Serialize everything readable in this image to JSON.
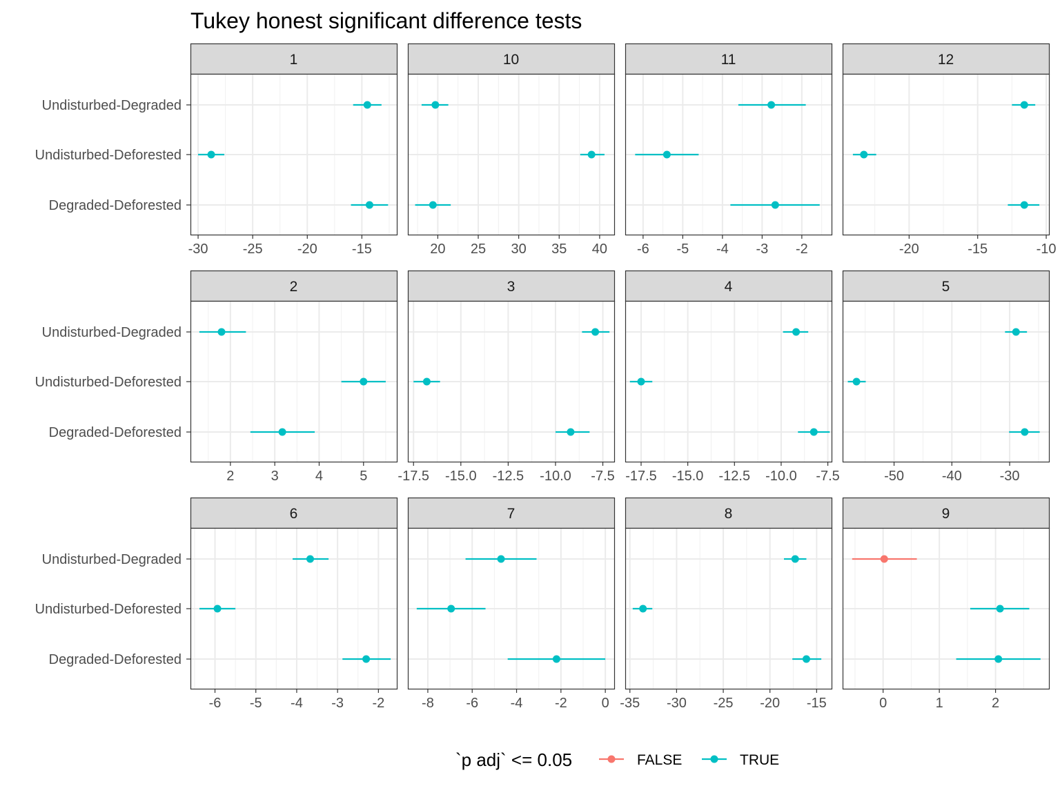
{
  "chart_data": {
    "type": "scatter",
    "title": "Tukey honest significant difference tests",
    "xlabel": "",
    "ylabel": "",
    "grid": true,
    "categories": [
      "Undisturbed-Degraded",
      "Undisturbed-Deforested",
      "Degraded-Deforested"
    ],
    "legend": {
      "title": "`p adj` <= 0.05",
      "position": "bottom",
      "entries": [
        {
          "label": "FALSE",
          "color": "#F8766D"
        },
        {
          "label": "TRUE",
          "color": "#00BFC4"
        }
      ]
    },
    "panels": [
      {
        "label": "1",
        "xlim": [
          -30.7,
          -11.8
        ],
        "ticks": [
          -30,
          -25,
          -20,
          -15
        ],
        "tick_labels": [
          "-30",
          "-25",
          "-20",
          "-15"
        ],
        "points": [
          {
            "category": "Undisturbed-Degraded",
            "estimate": -14.5,
            "lwr": -15.8,
            "upr": -13.2,
            "significant": true
          },
          {
            "category": "Undisturbed-Deforested",
            "estimate": -28.8,
            "lwr": -30.0,
            "upr": -27.6,
            "significant": true
          },
          {
            "category": "Degraded-Deforested",
            "estimate": -14.3,
            "lwr": -16.0,
            "upr": -12.6,
            "significant": true
          }
        ]
      },
      {
        "label": "10",
        "xlim": [
          16.3,
          41.8
        ],
        "ticks": [
          20,
          25,
          30,
          35,
          40
        ],
        "tick_labels": [
          "20",
          "25",
          "30",
          "35",
          "40"
        ],
        "points": [
          {
            "category": "Undisturbed-Degraded",
            "estimate": 19.7,
            "lwr": 18.0,
            "upr": 21.3,
            "significant": true
          },
          {
            "category": "Undisturbed-Deforested",
            "estimate": 39.0,
            "lwr": 37.6,
            "upr": 40.6,
            "significant": true
          },
          {
            "category": "Degraded-Deforested",
            "estimate": 19.4,
            "lwr": 17.2,
            "upr": 21.6,
            "significant": true
          }
        ]
      },
      {
        "label": "11",
        "xlim": [
          -6.45,
          -1.25
        ],
        "ticks": [
          -6,
          -5,
          -4,
          -3,
          -2
        ],
        "tick_labels": [
          "-6",
          "-5",
          "-4",
          "-3",
          "-2"
        ],
        "points": [
          {
            "category": "Undisturbed-Degraded",
            "estimate": -2.77,
            "lwr": -3.6,
            "upr": -1.9,
            "significant": true
          },
          {
            "category": "Undisturbed-Deforested",
            "estimate": -5.4,
            "lwr": -6.2,
            "upr": -4.6,
            "significant": true
          },
          {
            "category": "Degraded-Deforested",
            "estimate": -2.67,
            "lwr": -3.8,
            "upr": -1.55,
            "significant": true
          }
        ]
      },
      {
        "label": "12",
        "xlim": [
          -24.85,
          -9.8
        ],
        "ticks": [
          -20,
          -15,
          -10
        ],
        "tick_labels": [
          "-20",
          "-15",
          "-10"
        ],
        "points": [
          {
            "category": "Undisturbed-Degraded",
            "estimate": -11.6,
            "lwr": -12.5,
            "upr": -10.8,
            "significant": true
          },
          {
            "category": "Undisturbed-Deforested",
            "estimate": -23.3,
            "lwr": -24.1,
            "upr": -22.4,
            "significant": true
          },
          {
            "category": "Degraded-Deforested",
            "estimate": -11.6,
            "lwr": -12.8,
            "upr": -10.5,
            "significant": true
          }
        ]
      },
      {
        "label": "2",
        "xlim": [
          1.1,
          5.75
        ],
        "ticks": [
          2,
          3,
          4,
          5
        ],
        "tick_labels": [
          "2",
          "3",
          "4",
          "5"
        ],
        "points": [
          {
            "category": "Undisturbed-Degraded",
            "estimate": 1.8,
            "lwr": 1.3,
            "upr": 2.35,
            "significant": true
          },
          {
            "category": "Undisturbed-Deforested",
            "estimate": 5.0,
            "lwr": 4.5,
            "upr": 5.5,
            "significant": true
          },
          {
            "category": "Degraded-Deforested",
            "estimate": 3.17,
            "lwr": 2.45,
            "upr": 3.9,
            "significant": true
          }
        ]
      },
      {
        "label": "3",
        "xlim": [
          -17.8,
          -6.9
        ],
        "ticks": [
          -17.5,
          -15,
          -12.5,
          -10,
          -7.5
        ],
        "tick_labels": [
          "-17.5",
          "-15.0",
          "-12.5",
          "-10.0",
          "-7.5"
        ],
        "points": [
          {
            "category": "Undisturbed-Degraded",
            "estimate": -7.9,
            "lwr": -8.6,
            "upr": -7.15,
            "significant": true
          },
          {
            "category": "Undisturbed-Deforested",
            "estimate": -16.8,
            "lwr": -17.5,
            "upr": -16.1,
            "significant": true
          },
          {
            "category": "Degraded-Deforested",
            "estimate": -9.2,
            "lwr": -10.0,
            "upr": -8.2,
            "significant": true
          }
        ]
      },
      {
        "label": "4",
        "xlim": [
          -18.35,
          -7.3
        ],
        "ticks": [
          -17.5,
          -15,
          -12.5,
          -10,
          -7.5
        ],
        "tick_labels": [
          "-17.5",
          "-15.0",
          "-12.5",
          "-10.0",
          "-7.5"
        ],
        "points": [
          {
            "category": "Undisturbed-Degraded",
            "estimate": -9.2,
            "lwr": -9.9,
            "upr": -8.55,
            "significant": true
          },
          {
            "category": "Undisturbed-Deforested",
            "estimate": -17.5,
            "lwr": -18.1,
            "upr": -16.9,
            "significant": true
          },
          {
            "category": "Degraded-Deforested",
            "estimate": -8.25,
            "lwr": -9.1,
            "upr": -7.4,
            "significant": true
          }
        ]
      },
      {
        "label": "5",
        "xlim": [
          -58.9,
          -23.2
        ],
        "ticks": [
          -50,
          -40,
          -30
        ],
        "tick_labels": [
          "-50",
          "-40",
          "-30"
        ],
        "points": [
          {
            "category": "Undisturbed-Degraded",
            "estimate": -28.9,
            "lwr": -30.8,
            "upr": -27.0,
            "significant": true
          },
          {
            "category": "Undisturbed-Deforested",
            "estimate": -56.5,
            "lwr": -58.0,
            "upr": -54.9,
            "significant": true
          },
          {
            "category": "Degraded-Deforested",
            "estimate": -27.4,
            "lwr": -30.1,
            "upr": -24.8,
            "significant": true
          }
        ]
      },
      {
        "label": "6",
        "xlim": [
          -6.6,
          -1.55
        ],
        "ticks": [
          -6,
          -5,
          -4,
          -3,
          -2
        ],
        "tick_labels": [
          "-6",
          "-5",
          "-4",
          "-3",
          "-2"
        ],
        "points": [
          {
            "category": "Undisturbed-Degraded",
            "estimate": -3.67,
            "lwr": -4.1,
            "upr": -3.22,
            "significant": true
          },
          {
            "category": "Undisturbed-Deforested",
            "estimate": -5.94,
            "lwr": -6.38,
            "upr": -5.5,
            "significant": true
          },
          {
            "category": "Degraded-Deforested",
            "estimate": -2.3,
            "lwr": -2.88,
            "upr": -1.7,
            "significant": true
          }
        ]
      },
      {
        "label": "7",
        "xlim": [
          -8.9,
          0.4
        ],
        "ticks": [
          -8,
          -6,
          -4,
          -2,
          0
        ],
        "tick_labels": [
          "-8",
          "-6",
          "-4",
          "-2",
          "0"
        ],
        "points": [
          {
            "category": "Undisturbed-Degraded",
            "estimate": -4.7,
            "lwr": -6.3,
            "upr": -3.1,
            "significant": true
          },
          {
            "category": "Undisturbed-Deforested",
            "estimate": -6.95,
            "lwr": -8.5,
            "upr": -5.4,
            "significant": true
          },
          {
            "category": "Degraded-Deforested",
            "estimate": -2.2,
            "lwr": -4.4,
            "upr": 0.0,
            "significant": true
          }
        ]
      },
      {
        "label": "8",
        "xlim": [
          -35.5,
          -13.4
        ],
        "ticks": [
          -35,
          -30,
          -25,
          -20,
          -15
        ],
        "tick_labels": [
          "-35",
          "-30",
          "-25",
          "-20",
          "-15"
        ],
        "points": [
          {
            "category": "Undisturbed-Degraded",
            "estimate": -17.3,
            "lwr": -18.5,
            "upr": -16.1,
            "significant": true
          },
          {
            "category": "Undisturbed-Deforested",
            "estimate": -33.6,
            "lwr": -34.7,
            "upr": -32.6,
            "significant": true
          },
          {
            "category": "Degraded-Deforested",
            "estimate": -16.1,
            "lwr": -17.6,
            "upr": -14.5,
            "significant": true
          }
        ]
      },
      {
        "label": "9",
        "xlim": [
          -0.72,
          2.95
        ],
        "ticks": [
          0,
          1,
          2
        ],
        "tick_labels": [
          "0",
          "1",
          "2"
        ],
        "points": [
          {
            "category": "Undisturbed-Degraded",
            "estimate": 0.02,
            "lwr": -0.55,
            "upr": 0.6,
            "significant": false
          },
          {
            "category": "Undisturbed-Deforested",
            "estimate": 2.08,
            "lwr": 1.55,
            "upr": 2.6,
            "significant": true
          },
          {
            "category": "Degraded-Deforested",
            "estimate": 2.05,
            "lwr": 1.3,
            "upr": 2.8,
            "significant": true
          }
        ]
      }
    ]
  }
}
